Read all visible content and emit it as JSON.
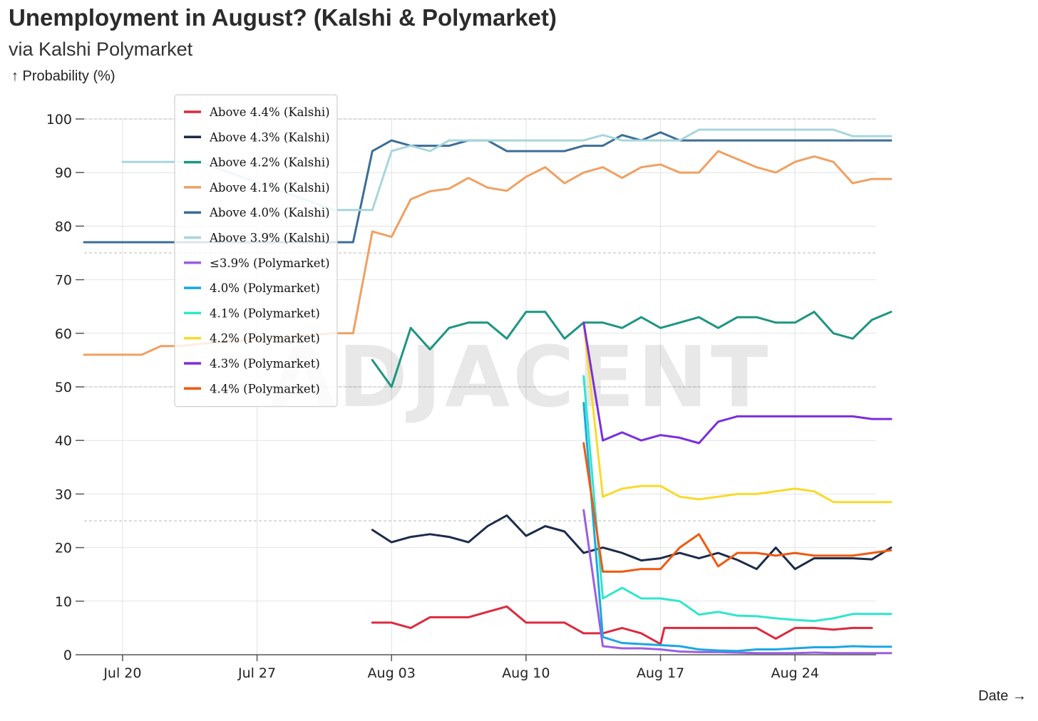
{
  "title": "Unemployment in August? (Kalshi & Polymarket)",
  "subtitle": "via Kalshi Polymarket",
  "ylabel_text": "↑ Probability (%)",
  "xlabel_text": "Date →",
  "watermark": "ADJACENT",
  "chart_data": {
    "type": "line",
    "title": "Unemployment in August? (Kalshi & Polymarket)",
    "subtitle": "via Kalshi Polymarket",
    "xlabel": "Date",
    "ylabel": "Probability (%)",
    "x_range": [
      "Jul 18",
      "Aug 28"
    ],
    "ylim": [
      0,
      100
    ],
    "y_ticks": [
      0,
      10,
      20,
      30,
      40,
      50,
      60,
      70,
      80,
      90,
      100
    ],
    "x_ticks": [
      "Jul 20",
      "Jul 27",
      "Aug 03",
      "Aug 10",
      "Aug 17",
      "Aug 24"
    ],
    "x_tick_days": [
      2,
      9,
      16,
      23,
      30,
      37
    ],
    "grid": true,
    "legend_position": "top-left",
    "series": [
      {
        "name": "Above 4.4% (Kalshi)",
        "color": "#dc2a3e",
        "points": [
          [
            15,
            6
          ],
          [
            16,
            6
          ],
          [
            17,
            5
          ],
          [
            18,
            7
          ],
          [
            19,
            7
          ],
          [
            20,
            7
          ],
          [
            21,
            8
          ],
          [
            22,
            9
          ],
          [
            23,
            6
          ],
          [
            24,
            6
          ],
          [
            25,
            6
          ],
          [
            26,
            4
          ],
          [
            27,
            4
          ],
          [
            28,
            5
          ],
          [
            29,
            4
          ],
          [
            30,
            2
          ],
          [
            30.2,
            5
          ],
          [
            31,
            5
          ],
          [
            32,
            5
          ],
          [
            33,
            5
          ],
          [
            34,
            5
          ],
          [
            35,
            5
          ],
          [
            36,
            3
          ],
          [
            37,
            5
          ],
          [
            38,
            5
          ],
          [
            39,
            4.7
          ],
          [
            40,
            5
          ],
          [
            41,
            5
          ]
        ]
      },
      {
        "name": "Above 4.3% (Kalshi)",
        "color": "#1c2b4a",
        "points": [
          [
            15,
            23.3
          ],
          [
            16,
            21
          ],
          [
            17,
            22
          ],
          [
            18,
            22.5
          ],
          [
            19,
            22
          ],
          [
            20,
            21
          ],
          [
            21,
            24
          ],
          [
            22,
            26
          ],
          [
            23,
            22.2
          ],
          [
            24,
            24
          ],
          [
            25,
            23
          ],
          [
            26,
            19
          ],
          [
            27,
            20
          ],
          [
            28,
            19
          ],
          [
            29,
            17.6
          ],
          [
            30,
            18
          ],
          [
            31,
            19
          ],
          [
            32,
            18
          ],
          [
            33,
            19
          ],
          [
            34,
            17.7
          ],
          [
            35,
            16
          ],
          [
            36,
            20
          ],
          [
            37,
            16
          ],
          [
            38,
            18
          ],
          [
            39,
            18
          ],
          [
            40,
            18
          ],
          [
            41,
            17.8
          ],
          [
            42,
            20
          ]
        ]
      },
      {
        "name": "Above 4.2% (Kalshi)",
        "color": "#1e9582",
        "points": [
          [
            15,
            55
          ],
          [
            16,
            50
          ],
          [
            17,
            61
          ],
          [
            18,
            57
          ],
          [
            19,
            61
          ],
          [
            20,
            62
          ],
          [
            21,
            62
          ],
          [
            22,
            59
          ],
          [
            23,
            64
          ],
          [
            24,
            64
          ],
          [
            25,
            59
          ],
          [
            26,
            62
          ],
          [
            27,
            62
          ],
          [
            28,
            61
          ],
          [
            29,
            63
          ],
          [
            30,
            61
          ],
          [
            31,
            62
          ],
          [
            32,
            63
          ],
          [
            33,
            61
          ],
          [
            34,
            63
          ],
          [
            35,
            63
          ],
          [
            36,
            62
          ],
          [
            37,
            62
          ],
          [
            38,
            64
          ],
          [
            39,
            60
          ],
          [
            40,
            59
          ],
          [
            41,
            62.5
          ],
          [
            42,
            64
          ]
        ]
      },
      {
        "name": "Above 4.1% (Kalshi)",
        "color": "#f0a062",
        "points": [
          [
            0,
            56
          ],
          [
            1,
            56
          ],
          [
            2,
            56
          ],
          [
            3,
            56
          ],
          [
            4,
            57.6
          ],
          [
            5,
            57.6
          ],
          [
            6,
            58
          ],
          [
            13,
            60
          ],
          [
            14,
            60
          ],
          [
            15,
            79
          ],
          [
            16,
            78
          ],
          [
            17,
            85
          ],
          [
            18,
            86.5
          ],
          [
            19,
            87
          ],
          [
            20,
            89
          ],
          [
            21,
            87.2
          ],
          [
            22,
            86.6
          ],
          [
            23,
            89.2
          ],
          [
            24,
            91
          ],
          [
            25,
            88
          ],
          [
            26,
            90
          ],
          [
            27,
            91
          ],
          [
            28,
            89
          ],
          [
            29,
            91
          ],
          [
            30,
            91.5
          ],
          [
            31,
            90
          ],
          [
            32,
            90
          ],
          [
            33,
            94
          ],
          [
            34,
            92.5
          ],
          [
            35,
            91
          ],
          [
            36,
            90
          ],
          [
            37,
            92
          ],
          [
            38,
            93
          ],
          [
            39,
            92
          ],
          [
            40,
            88
          ],
          [
            41,
            88.8
          ],
          [
            42,
            88.8
          ]
        ]
      },
      {
        "name": "Above 4.0% (Kalshi)",
        "color": "#3c6e96",
        "points": [
          [
            0,
            77
          ],
          [
            1,
            77
          ],
          [
            2,
            77
          ],
          [
            3,
            77
          ],
          [
            4,
            77
          ],
          [
            5,
            77
          ],
          [
            6,
            77
          ],
          [
            7,
            77
          ],
          [
            8,
            77
          ],
          [
            9,
            77
          ],
          [
            10,
            77
          ],
          [
            11,
            77
          ],
          [
            12,
            77
          ],
          [
            13,
            77
          ],
          [
            14,
            77
          ],
          [
            15,
            94
          ],
          [
            16,
            96
          ],
          [
            17,
            95
          ],
          [
            18,
            95
          ],
          [
            19,
            95
          ],
          [
            20,
            96
          ],
          [
            21,
            96
          ],
          [
            22,
            94
          ],
          [
            23,
            94
          ],
          [
            24,
            94
          ],
          [
            25,
            94
          ],
          [
            26,
            95
          ],
          [
            27,
            95
          ],
          [
            28,
            97
          ],
          [
            29,
            96
          ],
          [
            30,
            97.5
          ],
          [
            31,
            96
          ],
          [
            32,
            96
          ],
          [
            33,
            96
          ],
          [
            34,
            96
          ],
          [
            35,
            96
          ],
          [
            36,
            96
          ],
          [
            37,
            96
          ],
          [
            38,
            96
          ],
          [
            39,
            96
          ],
          [
            40,
            96
          ],
          [
            41,
            96
          ],
          [
            42,
            96
          ]
        ]
      },
      {
        "name": "Above 3.9% (Kalshi)",
        "color": "#a7d6dc",
        "points": [
          [
            2,
            92
          ],
          [
            3,
            92
          ],
          [
            4,
            92
          ],
          [
            5,
            92
          ],
          [
            6,
            92
          ],
          [
            13,
            83
          ],
          [
            14,
            83
          ],
          [
            15,
            83
          ],
          [
            16,
            94
          ],
          [
            17,
            95
          ],
          [
            18,
            94
          ],
          [
            19,
            96
          ],
          [
            20,
            96
          ],
          [
            21,
            96
          ],
          [
            22,
            96
          ],
          [
            23,
            96
          ],
          [
            24,
            96
          ],
          [
            25,
            96
          ],
          [
            26,
            96
          ],
          [
            27,
            97
          ],
          [
            28,
            96
          ],
          [
            29,
            96
          ],
          [
            30,
            96
          ],
          [
            31,
            96
          ],
          [
            32,
            98
          ],
          [
            33,
            98
          ],
          [
            34,
            98
          ],
          [
            35,
            98
          ],
          [
            36,
            98
          ],
          [
            37,
            98
          ],
          [
            38,
            98
          ],
          [
            39,
            98
          ],
          [
            40,
            96.8
          ],
          [
            41,
            96.8
          ],
          [
            42,
            96.8
          ]
        ]
      },
      {
        "name": "≤3.9% (Polymarket)",
        "color": "#9b5ee0",
        "points": [
          [
            26,
            27
          ],
          [
            27,
            1.6
          ],
          [
            28,
            1.2
          ],
          [
            29,
            1.2
          ],
          [
            30,
            1
          ],
          [
            31,
            0.6
          ],
          [
            32,
            0.5
          ],
          [
            33,
            0.5
          ],
          [
            34,
            0.4
          ],
          [
            35,
            0.3
          ],
          [
            36,
            0.3
          ],
          [
            37,
            0.3
          ],
          [
            38,
            0.4
          ],
          [
            39,
            0.3
          ],
          [
            40,
            0.3
          ],
          [
            41,
            0.3
          ],
          [
            42,
            0.3
          ]
        ]
      },
      {
        "name": "4.0% (Polymarket)",
        "color": "#1aa8e2",
        "points": [
          [
            26,
            47
          ],
          [
            27,
            3.3
          ],
          [
            28,
            2.2
          ],
          [
            29,
            2
          ],
          [
            30,
            1.8
          ],
          [
            31,
            1.6
          ],
          [
            32,
            1
          ],
          [
            33,
            0.8
          ],
          [
            34,
            0.7
          ],
          [
            35,
            1
          ],
          [
            36,
            1
          ],
          [
            37,
            1.2
          ],
          [
            38,
            1.4
          ],
          [
            39,
            1.4
          ],
          [
            40,
            1.6
          ],
          [
            41,
            1.5
          ],
          [
            42,
            1.5
          ]
        ]
      },
      {
        "name": "4.1% (Polymarket)",
        "color": "#2ee6cc",
        "points": [
          [
            26,
            52
          ],
          [
            27,
            10.5
          ],
          [
            28,
            12.5
          ],
          [
            29,
            10.5
          ],
          [
            30,
            10.5
          ],
          [
            31,
            10
          ],
          [
            32,
            7.5
          ],
          [
            33,
            8
          ],
          [
            34,
            7.3
          ],
          [
            35,
            7.2
          ],
          [
            36,
            6.8
          ],
          [
            37,
            6.5
          ],
          [
            38,
            6.3
          ],
          [
            39,
            6.8
          ],
          [
            40,
            7.6
          ],
          [
            41,
            7.6
          ],
          [
            42,
            7.6
          ]
        ]
      },
      {
        "name": "4.2% (Polymarket)",
        "color": "#f9da2c",
        "points": [
          [
            26,
            62
          ],
          [
            27,
            29.5
          ],
          [
            28,
            31
          ],
          [
            29,
            31.5
          ],
          [
            30,
            31.5
          ],
          [
            31,
            29.5
          ],
          [
            32,
            29
          ],
          [
            33,
            29.5
          ],
          [
            34,
            30
          ],
          [
            35,
            30
          ],
          [
            36,
            30.5
          ],
          [
            37,
            31
          ],
          [
            38,
            30.5
          ],
          [
            39,
            28.5
          ],
          [
            40,
            28.5
          ],
          [
            41,
            28.5
          ],
          [
            42,
            28.5
          ]
        ]
      },
      {
        "name": "4.3% (Polymarket)",
        "color": "#7a2ee0",
        "points": [
          [
            26,
            62
          ],
          [
            27,
            40
          ],
          [
            28,
            41.5
          ],
          [
            29,
            40
          ],
          [
            30,
            41
          ],
          [
            31,
            40.5
          ],
          [
            32,
            39.5
          ],
          [
            33,
            43.5
          ],
          [
            34,
            44.5
          ],
          [
            35,
            44.5
          ],
          [
            36,
            44.5
          ],
          [
            37,
            44.5
          ],
          [
            38,
            44.5
          ],
          [
            39,
            44.5
          ],
          [
            40,
            44.5
          ],
          [
            41,
            44
          ],
          [
            42,
            44
          ]
        ]
      },
      {
        "name": "4.4% (Polymarket)",
        "color": "#ee5a12",
        "points": [
          [
            26,
            39.5
          ],
          [
            27,
            15.5
          ],
          [
            28,
            15.5
          ],
          [
            29,
            16
          ],
          [
            30,
            16
          ],
          [
            31,
            20
          ],
          [
            32,
            22.5
          ],
          [
            33,
            16.5
          ],
          [
            34,
            19
          ],
          [
            35,
            19
          ],
          [
            36,
            18.5
          ],
          [
            37,
            19
          ],
          [
            38,
            18.5
          ],
          [
            39,
            18.5
          ],
          [
            40,
            18.5
          ],
          [
            41,
            19
          ],
          [
            42,
            19.5
          ]
        ]
      }
    ]
  }
}
